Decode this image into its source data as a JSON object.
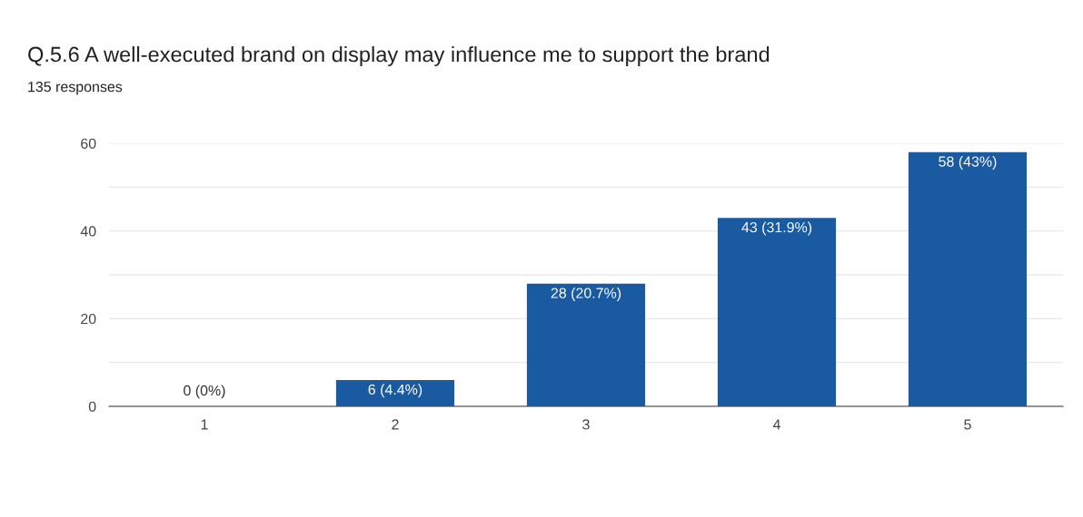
{
  "chart_data": {
    "type": "bar",
    "title": "Q.5.6 A well-executed brand on display may influence me to support the brand",
    "subtitle": "135 responses",
    "categories": [
      "1",
      "2",
      "3",
      "4",
      "5"
    ],
    "values": [
      0,
      6,
      28,
      43,
      58
    ],
    "value_labels": [
      "0 (0%)",
      "6 (4.4%)",
      "28 (20.7%)",
      "43 (31.9%)",
      "58 (43%)"
    ],
    "color": "#1a5aa0",
    "ylim": [
      0,
      60
    ],
    "yticks": [
      0,
      {
        "value": 10,
        "label": null
      },
      20,
      {
        "value": 30,
        "label": null
      },
      40,
      {
        "value": 50,
        "label": null
      },
      60
    ],
    "grid": "y",
    "legend": false
  }
}
